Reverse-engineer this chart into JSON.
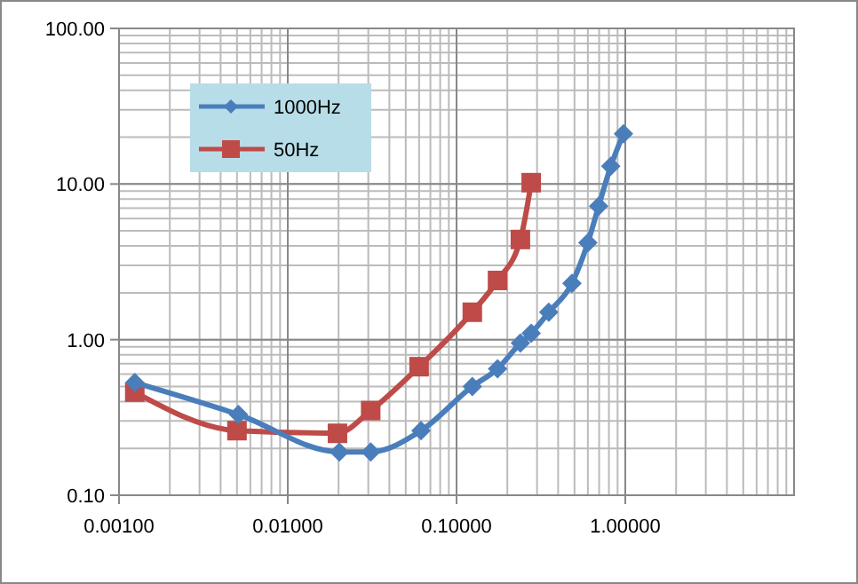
{
  "chart_data": {
    "type": "line",
    "log": "xy",
    "grid": true,
    "legend": "top left",
    "xlim": [
      0.001,
      10
    ],
    "ylim": [
      0.1,
      100
    ],
    "xticks": [
      {
        "value": 0.001,
        "label": "0.00100"
      },
      {
        "value": 0.01,
        "label": "0.01000"
      },
      {
        "value": 0.1,
        "label": "0.10000"
      },
      {
        "value": 1,
        "label": "1.00000"
      }
    ],
    "yticks": [
      {
        "value": 0.1,
        "label": "0.10"
      },
      {
        "value": 1,
        "label": "1.00"
      },
      {
        "value": 10,
        "label": "10.00"
      },
      {
        "value": 100,
        "label": "100.00"
      }
    ],
    "series": [
      {
        "name": "1000Hz",
        "color": "#4a7ebb",
        "marker": "diamond",
        "x": [
          0.00124,
          0.0051,
          0.0202,
          0.031,
          0.0616,
          0.124,
          0.175,
          0.239,
          0.277,
          0.352,
          0.483,
          0.6,
          0.695,
          0.82,
          0.975
        ],
        "values": [
          0.53,
          0.33,
          0.19,
          0.19,
          0.26,
          0.5,
          0.65,
          0.95,
          1.1,
          1.5,
          2.3,
          4.2,
          7.2,
          13,
          21
        ]
      },
      {
        "name": "50Hz",
        "color": "#be4b48",
        "marker": "square",
        "x": [
          0.00124,
          0.005,
          0.0197,
          0.031,
          0.06,
          0.124,
          0.175,
          0.239,
          0.277
        ],
        "values": [
          0.46,
          0.26,
          0.25,
          0.35,
          0.67,
          1.5,
          2.4,
          4.4,
          10.2
        ]
      }
    ]
  }
}
